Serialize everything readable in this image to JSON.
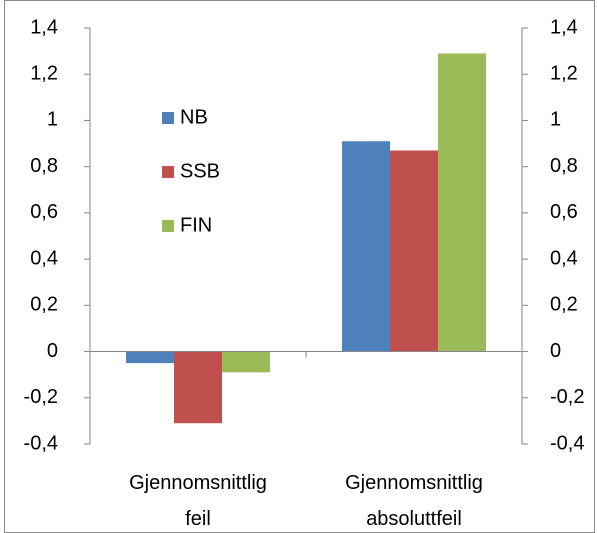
{
  "chart_data": {
    "type": "bar",
    "categories": [
      "Gjennomsnittlig feil",
      "Gjennomsnittlig absoluttfeil"
    ],
    "series": [
      {
        "name": "NB",
        "color": "#4f81bd",
        "values": [
          -0.05,
          0.91
        ]
      },
      {
        "name": "SSB",
        "color": "#c0504d",
        "values": [
          -0.31,
          0.87
        ]
      },
      {
        "name": "FIN",
        "color": "#9bbb59",
        "values": [
          -0.09,
          1.29
        ]
      }
    ],
    "ylim": [
      -0.4,
      1.4
    ],
    "yticks": [
      {
        "value": -0.4,
        "label": "-0,4"
      },
      {
        "value": -0.2,
        "label": "-0,2"
      },
      0,
      {
        "value": 0.2,
        "label": "0,2"
      },
      {
        "value": 0.4,
        "label": "0,4"
      },
      {
        "value": 0.6,
        "label": "0,6"
      },
      {
        "value": 0.8,
        "label": "0,8"
      },
      1,
      {
        "value": 1.2,
        "label": "1,2"
      },
      {
        "value": 1.4,
        "label": "1,4"
      }
    ],
    "y2lim": [
      -0.4,
      1.4
    ],
    "y2ticks": [
      {
        "value": -0.4,
        "label": "-0,4"
      },
      {
        "value": -0.2,
        "label": "-0,2"
      },
      0,
      {
        "value": 0.2,
        "label": "0,2"
      },
      {
        "value": 0.4,
        "label": "0,4"
      },
      {
        "value": 0.6,
        "label": "0,6"
      },
      {
        "value": 0.8,
        "label": "0,8"
      },
      1,
      {
        "value": 1.2,
        "label": "1,2"
      },
      {
        "value": 1.4,
        "label": "1,4"
      }
    ],
    "grid": false
  }
}
